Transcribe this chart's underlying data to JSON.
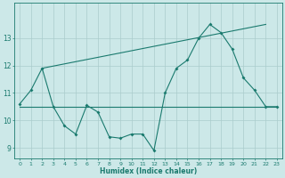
{
  "xlabel": "Humidex (Indice chaleur)",
  "x": [
    0,
    1,
    2,
    3,
    4,
    5,
    6,
    7,
    8,
    9,
    10,
    11,
    12,
    13,
    14,
    15,
    16,
    17,
    18,
    19,
    20,
    21,
    22,
    23
  ],
  "line1_y": [
    10.6,
    11.1,
    11.9,
    10.5,
    9.8,
    9.5,
    10.55,
    10.3,
    9.4,
    9.35,
    9.5,
    9.5,
    8.9,
    11.0,
    11.9,
    12.2,
    13.0,
    13.5,
    13.2,
    12.6,
    11.55,
    11.1,
    10.5,
    10.5
  ],
  "rising_line_x": [
    2,
    22
  ],
  "rising_line_y": [
    11.9,
    13.5
  ],
  "flat_line_x": [
    0,
    23
  ],
  "flat_line_y": [
    10.5,
    10.5
  ],
  "bg_color": "#cce8e8",
  "line_color": "#1a7a6e",
  "grid_color": "#aacccc",
  "ylim": [
    8.6,
    14.3
  ],
  "yticks": [
    9,
    10,
    11,
    12,
    13
  ],
  "xticks": [
    0,
    1,
    2,
    3,
    4,
    5,
    6,
    7,
    8,
    9,
    10,
    11,
    12,
    13,
    14,
    15,
    16,
    17,
    18,
    19,
    20,
    21,
    22,
    23
  ]
}
